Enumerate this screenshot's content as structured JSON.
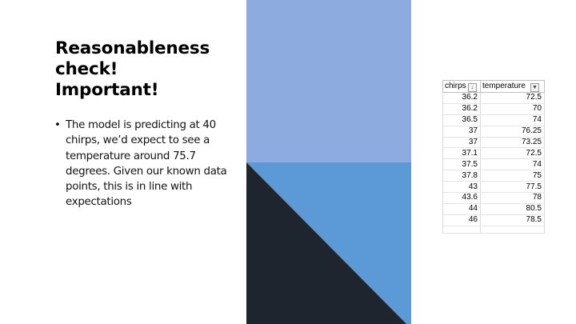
{
  "slide": {
    "title_lines": [
      "Reasonableness",
      "check!",
      "Important!"
    ],
    "bullets": [
      "The model is predicting at 40 chirps, we’d expect to see a temperature around 75.7 degrees. Given our known data points, this is in line with expectations"
    ]
  },
  "colors": {
    "top_block": "#8eabe0",
    "bottom_block": "#5b9ad7",
    "dark_triangle": "#1f252e"
  },
  "table": {
    "headers": [
      "chirps",
      "temperature"
    ],
    "header_icons": [
      "sort-ascending-filter-icon",
      "filter-dropdown-icon"
    ],
    "rows": [
      [
        "36.2",
        "72.5"
      ],
      [
        "36.2",
        "70"
      ],
      [
        "36.5",
        "74"
      ],
      [
        "37",
        "76.25"
      ],
      [
        "37",
        "73.25"
      ],
      [
        "37.1",
        "72.5"
      ],
      [
        "37.5",
        "74"
      ],
      [
        "37.8",
        "75"
      ],
      [
        "43",
        "77.5"
      ],
      [
        "43.6",
        "78"
      ],
      [
        "44",
        "80.5"
      ],
      [
        "46",
        "78.5"
      ]
    ]
  }
}
